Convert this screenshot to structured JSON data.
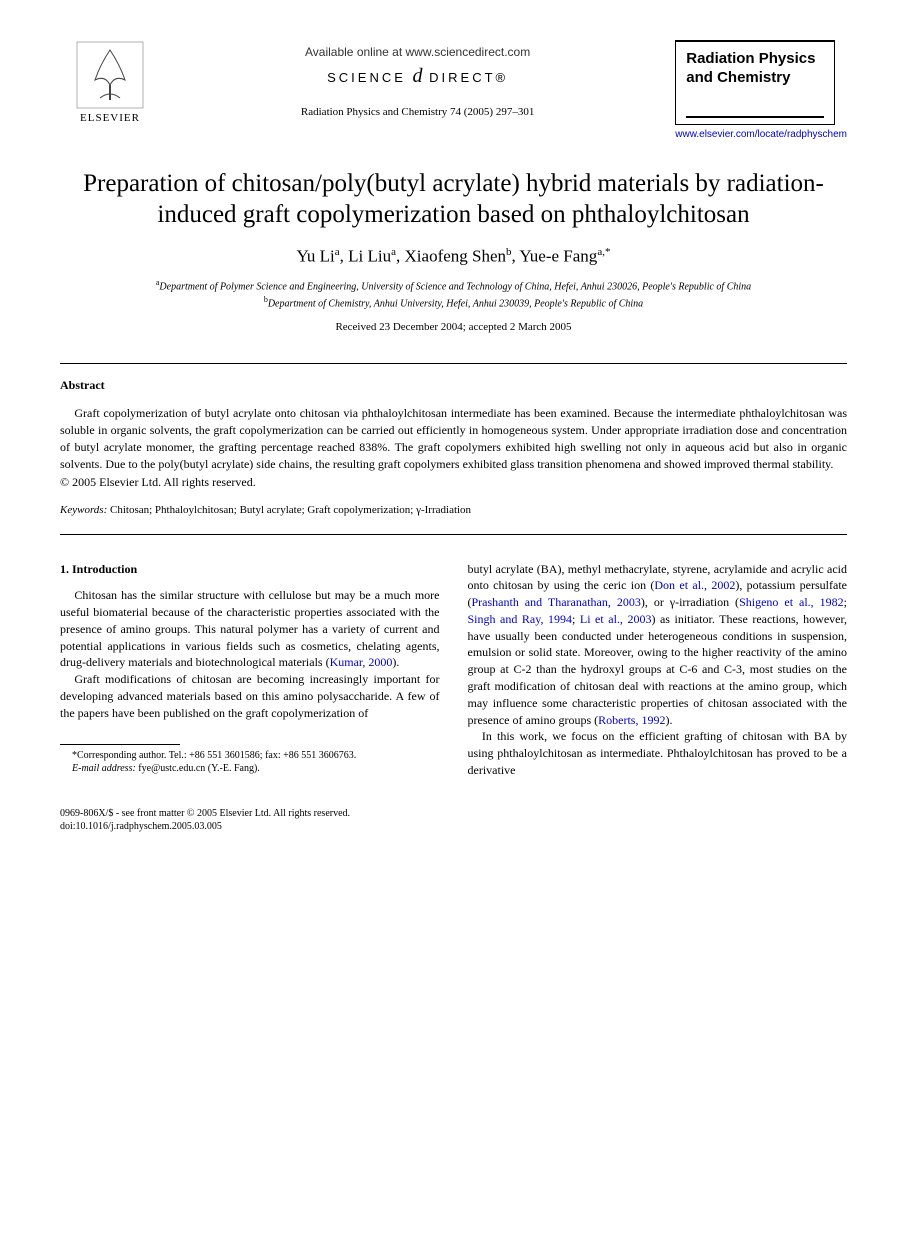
{
  "header": {
    "elsevier_label": "ELSEVIER",
    "available_online": "Available online at www.sciencedirect.com",
    "science_prefix": "SCIENCE",
    "science_d": "d",
    "science_suffix": "DIRECT®",
    "journal_ref": "Radiation Physics and Chemistry 74 (2005) 297–301",
    "journal_box_title": "Radiation Physics and Chemistry",
    "journal_link": "www.elsevier.com/locate/radphyschem"
  },
  "article": {
    "title": "Preparation of chitosan/poly(butyl acrylate) hybrid materials by radiation-induced graft copolymerization based on phthaloylchitosan",
    "authors_html": "Yu Li<sup>a</sup>, Li Liu<sup>a</sup>, Xiaofeng Shen<sup>b</sup>, Yue-e Fang<sup>a,*</sup>",
    "affiliation_a": "Department of Polymer Science and Engineering, University of Science and Technology of China, Hefei, Anhui 230026, People's Republic of China",
    "affiliation_b": "Department of Chemistry, Anhui University, Hefei, Anhui 230039, People's Republic of China",
    "dates": "Received 23 December 2004; accepted 2 March 2005"
  },
  "abstract": {
    "heading": "Abstract",
    "text": "Graft copolymerization of butyl acrylate onto chitosan via phthaloylchitosan intermediate has been examined. Because the intermediate phthaloylchitosan was soluble in organic solvents, the graft copolymerization can be carried out efficiently in homogeneous system. Under appropriate irradiation dose and concentration of butyl acrylate monomer, the grafting percentage reached 838%. The graft copolymers exhibited high swelling not only in aqueous acid but also in organic solvents. Due to the poly(butyl acrylate) side chains, the resulting graft copolymers exhibited glass transition phenomena and showed improved thermal stability.",
    "copyright": "© 2005 Elsevier Ltd. All rights reserved.",
    "keywords_label": "Keywords:",
    "keywords": " Chitosan; Phthaloylchitosan; Butyl acrylate; Graft copolymerization; γ-Irradiation"
  },
  "body": {
    "section_heading": "1. Introduction",
    "col1_p1_a": "Chitosan has the similar structure with cellulose but may be a much more useful biomaterial because of the characteristic properties associated with the presence of amino groups. This natural polymer has a variety of current and potential applications in various fields such as cosmetics, chelating agents, drug-delivery materials and biotechnological materials (",
    "col1_p1_cite1": "Kumar, 2000",
    "col1_p1_b": ").",
    "col1_p2": "Graft modifications of chitosan are becoming increasingly important for developing advanced materials based on this amino polysaccharide. A few of the papers have been published on the graft copolymerization of",
    "col2_p1_a": "butyl acrylate (BA), methyl methacrylate, styrene, acrylamide and acrylic acid onto chitosan by using the ceric ion (",
    "col2_cite1": "Don et al., 2002",
    "col2_p1_b": "), potassium persulfate (",
    "col2_cite2": "Prashanth and Tharanathan, 2003",
    "col2_p1_c": "), or γ-irradiation (",
    "col2_cite3": "Shigeno et al., 1982",
    "col2_p1_d": "; ",
    "col2_cite4": "Singh and Ray, 1994",
    "col2_p1_e": "; ",
    "col2_cite5": "Li et al., 2003",
    "col2_p1_f": ") as initiator. These reactions, however, have usually been conducted under heterogeneous conditions in suspension, emulsion or solid state. Moreover, owing to the higher reactivity of the amino group at C-2 than the hydroxyl groups at C-6 and C-3, most studies on the graft modification of chitosan deal with reactions at the amino group, which may influence some characteristic properties of chitosan associated with the presence of amino groups (",
    "col2_cite6": "Roberts, 1992",
    "col2_p1_g": ").",
    "col2_p2": "In this work, we focus on the efficient grafting of chitosan with BA by using phthaloylchitosan as intermediate. Phthaloylchitosan has proved to be a derivative"
  },
  "footnote": {
    "corresponding": "*Corresponding author. Tel.: +86 551 3601586; fax: +86 551 3606763.",
    "email_label": "E-mail address:",
    "email": " fye@ustc.edu.cn (Y.-E. Fang)."
  },
  "footer": {
    "line1": "0969-806X/$ - see front matter © 2005 Elsevier Ltd. All rights reserved.",
    "line2": "doi:10.1016/j.radphyschem.2005.03.005"
  },
  "colors": {
    "text": "#000000",
    "link": "#0000cc",
    "background": "#ffffff"
  },
  "typography": {
    "title_fontsize": 25,
    "author_fontsize": 17,
    "body_fontsize": 12,
    "affiliation_fontsize": 10,
    "footnote_fontsize": 10
  }
}
